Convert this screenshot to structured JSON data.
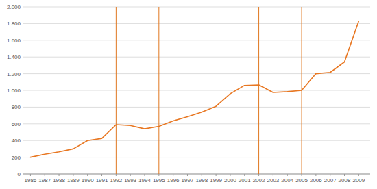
{
  "chart_data": {
    "type": "line",
    "x": [
      1986,
      1987,
      1988,
      1989,
      1990,
      1991,
      1992,
      1993,
      1994,
      1995,
      1996,
      1997,
      1998,
      1999,
      2000,
      2001,
      2002,
      2003,
      2004,
      2005,
      2006,
      2007,
      2008,
      2009
    ],
    "values": [
      200,
      235,
      265,
      300,
      400,
      425,
      590,
      580,
      540,
      570,
      635,
      685,
      740,
      810,
      960,
      1060,
      1065,
      975,
      985,
      1000,
      1200,
      1215,
      1340,
      1830
    ],
    "color": "#E87722",
    "vertical_lines": {
      "x": [
        1992,
        1995,
        2002,
        2005
      ],
      "color": "#E07820"
    },
    "xlim": [
      1985.5,
      2009.8
    ],
    "xticks": [
      1986,
      1987,
      1988,
      1989,
      1990,
      1991,
      1992,
      1993,
      1994,
      1995,
      1996,
      1997,
      1998,
      1999,
      2000,
      2001,
      2002,
      2003,
      2004,
      2005,
      2006,
      2007,
      2008,
      2009
    ],
    "ylim": [
      0,
      2000
    ],
    "yticks": [
      0,
      200,
      400,
      600,
      800,
      {
        "value": 1000,
        "label": "1.000"
      },
      {
        "value": 1200,
        "label": "1.200"
      },
      {
        "value": 1400,
        "label": "1.400"
      },
      {
        "value": 1600,
        "label": "1.600"
      },
      {
        "value": 1800,
        "label": "1.800"
      },
      {
        "value": 2000,
        "label": "2.000"
      }
    ],
    "grid": true
  }
}
